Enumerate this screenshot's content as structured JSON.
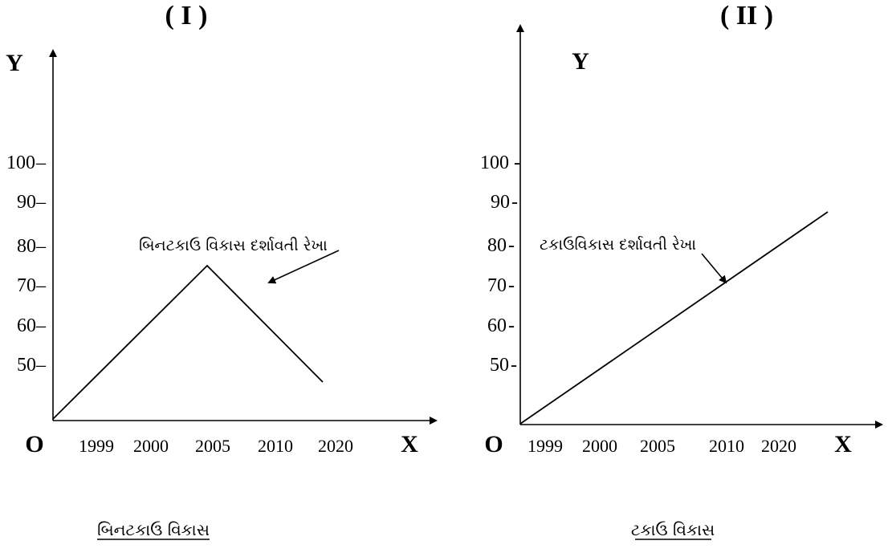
{
  "chart_data": [
    {
      "type": "line",
      "panel_label": "( I )",
      "caption": "બિનટકાઉ વિકાસ",
      "annotation": "બિનટકાઉ વિકાસ દર્શાવતી રેખા",
      "xlabel": "X",
      "ylabel": "Y",
      "origin_label": "O",
      "x_ticks": [
        "1999",
        "2000",
        "2005",
        "2010",
        "2020"
      ],
      "y_ticks": [
        "50",
        "60",
        "70",
        "80",
        "90",
        "100"
      ],
      "y_tick_suffix": "–",
      "line": [
        {
          "x": "origin",
          "y": "origin"
        },
        {
          "x": "2005",
          "y": 75
        },
        {
          "x": "2020",
          "y": 46
        }
      ]
    },
    {
      "type": "line",
      "panel_label": "( II )",
      "caption": "ટકાઉ વિકાસ",
      "annotation": "ટકાઉવિકાસ દર્શાવતી રેખા",
      "xlabel": "X",
      "ylabel": "Y",
      "origin_label": "O",
      "x_ticks": [
        "1999",
        "2000",
        "2005",
        "2010",
        "2020"
      ],
      "y_ticks": [
        "50",
        "60",
        "70",
        "80",
        "90",
        "100"
      ],
      "y_tick_suffix": "-",
      "line": [
        {
          "x": "origin",
          "y": "origin"
        },
        {
          "x": "beyond 2020",
          "y": 88
        }
      ]
    }
  ]
}
